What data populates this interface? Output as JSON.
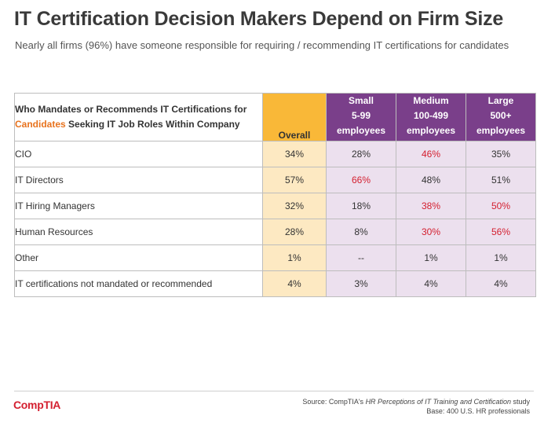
{
  "header": {
    "title": "IT Certification Decision Makers Depend on Firm Size",
    "subtitle": "Nearly all firms (96%) have someone responsible for requiring / recommending IT certifications for candidates"
  },
  "table": {
    "label_header": {
      "part1": "Who Mandates or Recommends IT Certifications for ",
      "accent": "Candidates",
      "part2": " Seeking IT Job Roles Within Company"
    },
    "columns": [
      {
        "line1": "Overall"
      },
      {
        "line1": "Small",
        "line2": "5-99",
        "line3": "employees"
      },
      {
        "line1": "Medium",
        "line2": "100-499",
        "line3": "employees"
      },
      {
        "line1": "Large",
        "line2": "500+",
        "line3": "employees"
      }
    ],
    "rows": [
      {
        "label": "CIO",
        "overall": "34%",
        "small": "28%",
        "medium": "46%",
        "large": "35%"
      },
      {
        "label": "IT Directors",
        "overall": "57%",
        "small": "66%",
        "medium": "48%",
        "large": "51%"
      },
      {
        "label": "IT Hiring Managers",
        "overall": "32%",
        "small": "18%",
        "medium": "38%",
        "large": "50%"
      },
      {
        "label": "Human Resources",
        "overall": "28%",
        "small": "8%",
        "medium": "30%",
        "large": "56%"
      },
      {
        "label": "Other",
        "overall": "1%",
        "small": "--",
        "medium": "1%",
        "large": "1%"
      },
      {
        "label": "IT certifications not mandated or recommended",
        "overall": "4%",
        "small": "3%",
        "medium": "4%",
        "large": "4%"
      }
    ],
    "highlight_color": "#d42030"
  },
  "footer": {
    "logo": "CompTIA",
    "source_prefix": "Source: CompTIA's ",
    "source_title": "HR Perceptions of IT Training and Certification",
    "source_suffix": " study",
    "base": "Base: 400 U.S. HR professionals"
  }
}
